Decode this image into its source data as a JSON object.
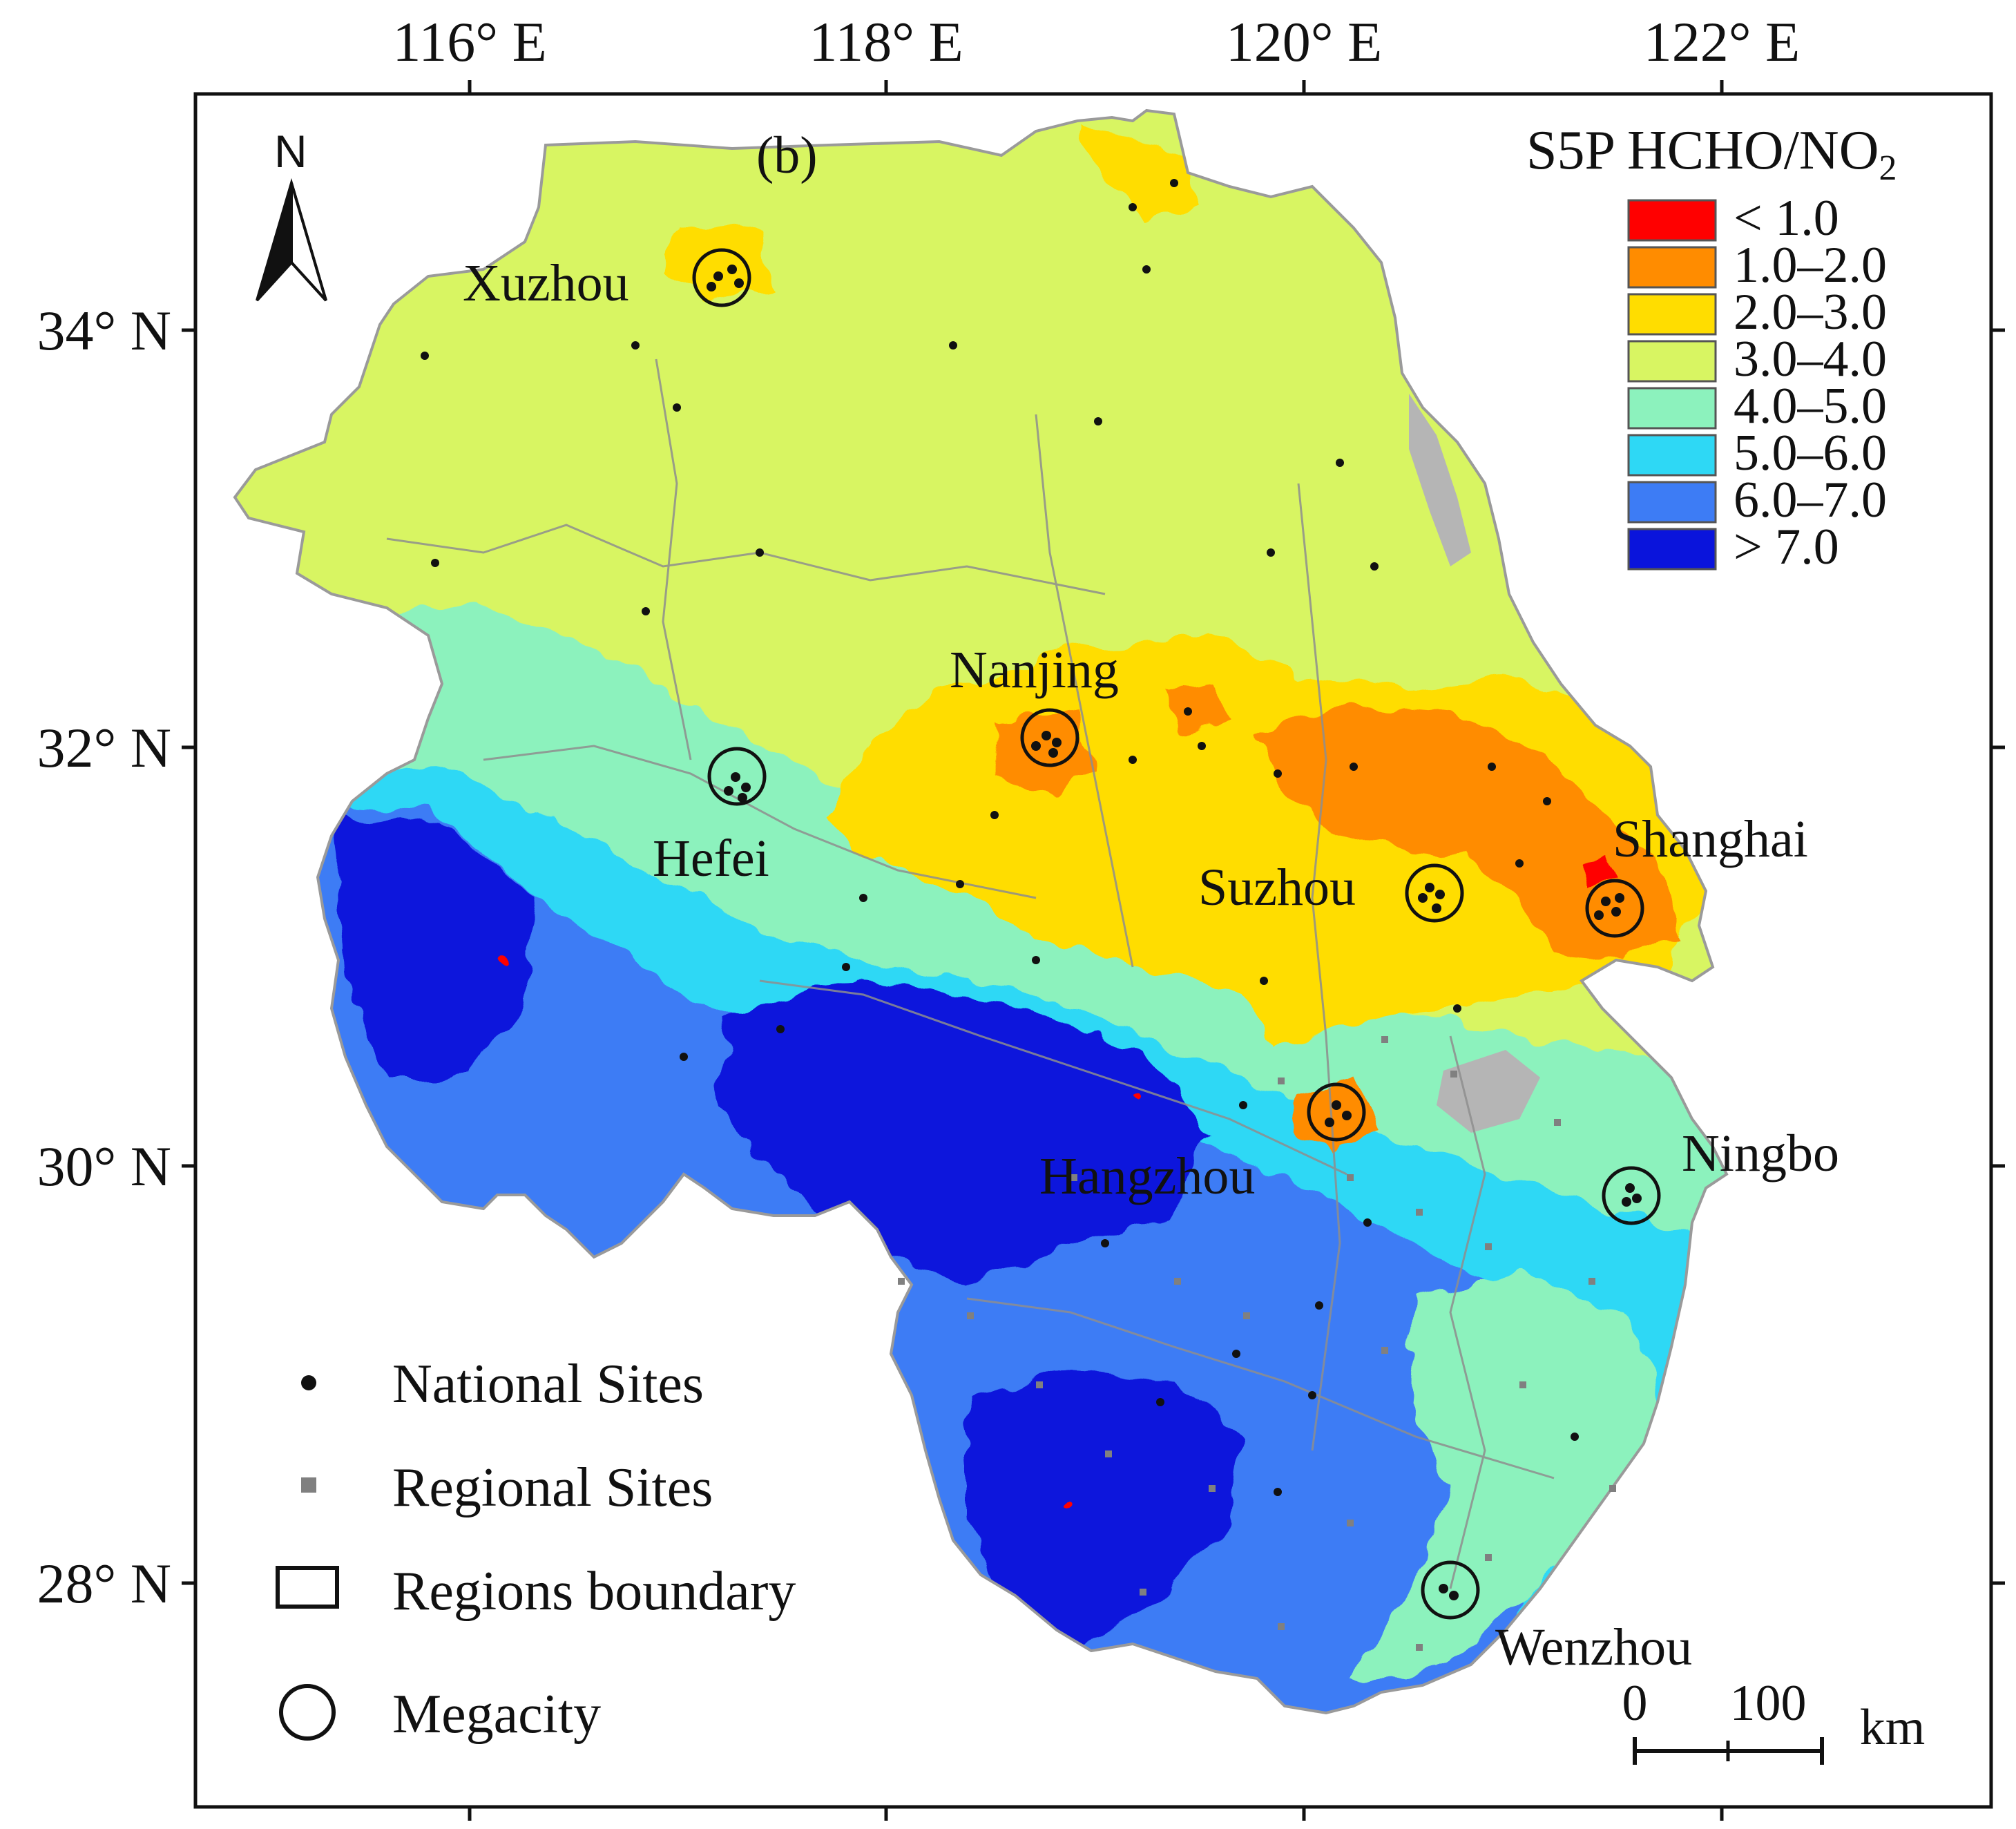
{
  "panel_label": "(b)",
  "north_label": "N",
  "legend": {
    "title_main": "S5P HCHO/NO",
    "title_sub": "2",
    "classes": [
      {
        "label": "< 1.0",
        "color": "#ff0000"
      },
      {
        "label": "1.0–2.0",
        "color": "#ff8c00"
      },
      {
        "label": "2.0–3.0",
        "color": "#ffdd00"
      },
      {
        "label": "3.0–4.0",
        "color": "#d8f562"
      },
      {
        "label": "4.0–5.0",
        "color": "#8cf2bd"
      },
      {
        "label": "5.0–6.0",
        "color": "#2ed8f5"
      },
      {
        "label": "6.0–7.0",
        "color": "#3d7cf5"
      },
      {
        "label": "> 7.0",
        "color": "#0a14dc"
      }
    ]
  },
  "axes": {
    "lon_ticks": [
      "116° E",
      "118° E",
      "120° E",
      "122° E"
    ],
    "lat_ticks": [
      "34° N",
      "32° N",
      "30° N",
      "28° N"
    ]
  },
  "cities": [
    "Xuzhou",
    "Nanjing",
    "Hefei",
    "Suzhou",
    "Shanghai",
    "Hangzhou",
    "Ningbo",
    "Wenzhou"
  ],
  "symbol_legend": {
    "national": "National Sites",
    "regional": "Regional Sites",
    "boundary": "Regions boundary",
    "megacity": "Megacity"
  },
  "scale_bar": {
    "start": "0",
    "end": "100",
    "unit": "km"
  }
}
